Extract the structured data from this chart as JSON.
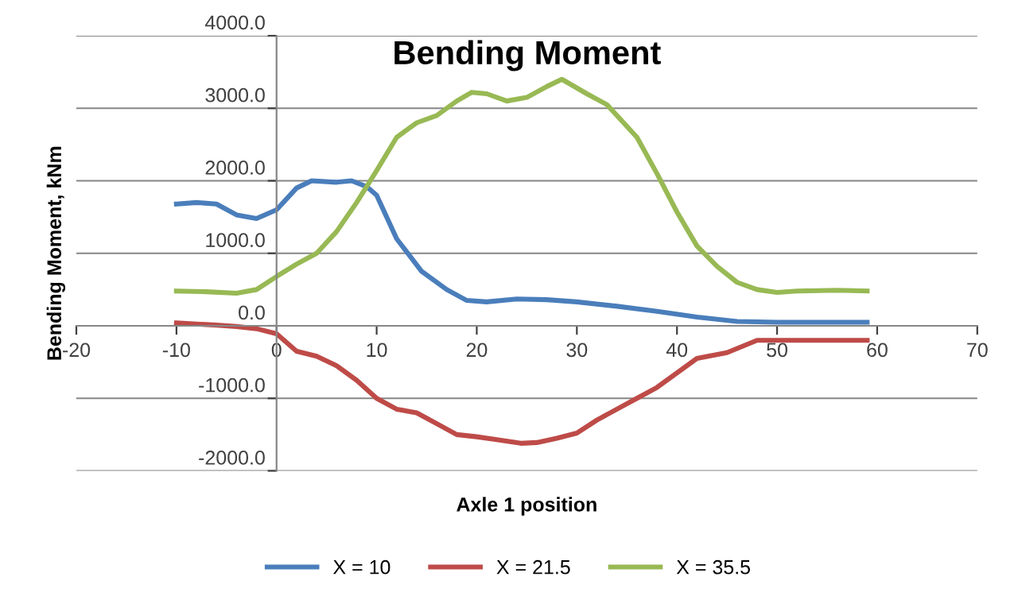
{
  "chart_data": {
    "type": "line",
    "title": "Bending Moment",
    "xlabel": "Axle 1 position",
    "ylabel": "Bending Moment, kNm",
    "xlim": [
      -20,
      70
    ],
    "xticks": [
      -20,
      -10,
      0,
      10,
      20,
      30,
      40,
      50,
      60,
      70
    ],
    "ylim": [
      -2000,
      4000
    ],
    "yticks": [
      {
        "value": -2000,
        "label": "-2000.0"
      },
      {
        "value": -1000,
        "label": "-1000.0"
      },
      {
        "value": 0,
        "label": "0.0"
      },
      {
        "value": 1000,
        "label": "1000.0"
      },
      {
        "value": 2000,
        "label": "2000.0"
      },
      {
        "value": 3000,
        "label": "3000.0"
      },
      {
        "value": 4000,
        "label": "4000.0"
      }
    ],
    "grid": "y",
    "legend": "bottom",
    "marker": "none",
    "line_style": "solid",
    "series": [
      {
        "name": "X = 10",
        "color": "#4a7ebb",
        "x": [
          -10,
          -8,
          -6,
          -4,
          -2,
          0,
          2,
          3.5,
          6,
          7.5,
          9,
          10,
          12,
          14.5,
          17,
          19,
          21,
          24,
          27,
          30,
          34,
          38,
          42,
          46,
          50,
          55,
          59
        ],
        "values": [
          1680,
          1700,
          1680,
          1530,
          1480,
          1600,
          1900,
          2000,
          1980,
          2000,
          1920,
          1800,
          1200,
          750,
          500,
          350,
          330,
          370,
          360,
          330,
          270,
          200,
          120,
          60,
          50,
          50,
          50
        ]
      },
      {
        "name": "X = 21.5",
        "color": "#be4b48",
        "x": [
          -10,
          -6,
          -4,
          -2,
          0,
          2,
          4,
          6,
          8,
          10,
          12,
          14,
          16,
          18,
          20,
          22,
          24.4,
          26,
          28,
          30,
          32,
          34,
          36,
          38,
          40,
          42,
          45,
          48,
          50,
          55,
          59
        ],
        "values": [
          40,
          10,
          -10,
          -40,
          -110,
          -350,
          -420,
          -550,
          -750,
          -1000,
          -1150,
          -1200,
          -1350,
          -1500,
          -1530,
          -1570,
          -1620,
          -1610,
          -1550,
          -1480,
          -1300,
          -1150,
          -1000,
          -850,
          -650,
          -450,
          -370,
          -200,
          -200,
          -200,
          -200
        ]
      },
      {
        "name": "X = 35.5",
        "color": "#98b954",
        "x": [
          -10,
          -7,
          -4,
          -2,
          0,
          2,
          4,
          6,
          8,
          10,
          12,
          14,
          16,
          18,
          19.5,
          21,
          23,
          25,
          27,
          28.5,
          31,
          33,
          36,
          38,
          40,
          42,
          44,
          46,
          48,
          50,
          52,
          56,
          59
        ],
        "values": [
          480,
          470,
          450,
          500,
          680,
          850,
          1000,
          1300,
          1700,
          2140,
          2600,
          2800,
          2900,
          3100,
          3220,
          3200,
          3100,
          3150,
          3300,
          3400,
          3200,
          3050,
          2600,
          2100,
          1570,
          1100,
          820,
          600,
          500,
          460,
          480,
          490,
          480
        ]
      }
    ]
  }
}
